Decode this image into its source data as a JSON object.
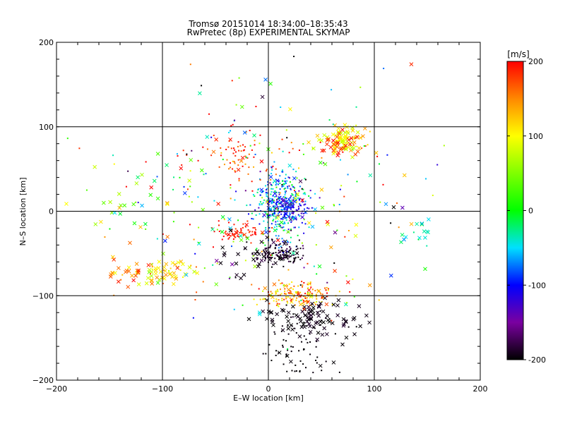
{
  "title_line1": "Tromsø 20151014  18:34:00–18:35:43",
  "title_line2": "RwPretec (8p) EXPERIMENTAL SKYMAP",
  "chart_data": {
    "type": "scatter",
    "title": "Tromsø 20151014  18:34:00–18:35:43 — RwPretec (8p) EXPERIMENTAL SKYMAP",
    "xlabel": "E–W location [km]",
    "ylabel": "N–S location [km]",
    "xlim": [
      -200,
      200
    ],
    "ylim": [
      -200,
      200
    ],
    "xticks": [
      -200,
      -100,
      0,
      100,
      200
    ],
    "yticks": [
      -200,
      -100,
      0,
      100,
      200
    ],
    "grid": true,
    "colorbar": {
      "label": "[m/s]",
      "range": [
        -200,
        200
      ],
      "ticks": [
        200,
        100,
        0,
        -100,
        -200
      ],
      "stops": [
        {
          "v": -200,
          "color": "#000000"
        },
        {
          "v": -150,
          "color": "#7a00a0"
        },
        {
          "v": -100,
          "color": "#0000ff"
        },
        {
          "v": -50,
          "color": "#00e0ff"
        },
        {
          "v": 0,
          "color": "#00ff00"
        },
        {
          "v": 100,
          "color": "#ffff00"
        },
        {
          "v": 150,
          "color": "#ff8800"
        },
        {
          "v": 200,
          "color": "#ff0000"
        }
      ]
    },
    "clusters": [
      {
        "name": "central-core",
        "cx": 10,
        "cy": 5,
        "sx": 12,
        "sy": 22,
        "n": 320,
        "v_mean": -60,
        "v_sd": 45,
        "marker": "dot"
      },
      {
        "name": "central-blue",
        "cx": 18,
        "cy": 5,
        "sx": 10,
        "sy": 10,
        "n": 120,
        "v_mean": -110,
        "v_sd": 20,
        "marker": "dot"
      },
      {
        "name": "black-blob",
        "cx": 10,
        "cy": -50,
        "sx": 12,
        "sy": 6,
        "n": 140,
        "v_mean": -190,
        "v_sd": 10,
        "marker": "dot"
      },
      {
        "name": "southern-orange",
        "cx": 28,
        "cy": -98,
        "sx": 17,
        "sy": 8,
        "n": 170,
        "v_mean": 140,
        "v_sd": 40,
        "marker": "dot"
      },
      {
        "name": "southern-black",
        "cx": 38,
        "cy": -128,
        "sx": 22,
        "sy": 10,
        "n": 110,
        "v_mean": -195,
        "v_sd": 5,
        "marker": "cross"
      },
      {
        "name": "southern-tail",
        "cx": 25,
        "cy": -165,
        "sx": 18,
        "sy": 18,
        "n": 70,
        "v_mean": -198,
        "v_sd": 2,
        "marker": "dot"
      },
      {
        "name": "northeast-yellow",
        "cx": 70,
        "cy": 85,
        "sx": 10,
        "sy": 8,
        "n": 80,
        "v_mean": 100,
        "v_sd": 25,
        "marker": "cross"
      },
      {
        "name": "northeast-red",
        "cx": 70,
        "cy": 78,
        "sx": 10,
        "sy": 8,
        "n": 30,
        "v_mean": 185,
        "v_sd": 15,
        "marker": "cross"
      },
      {
        "name": "mid-red-left",
        "cx": -28,
        "cy": -25,
        "sx": 12,
        "sy": 6,
        "n": 70,
        "v_mean": 190,
        "v_sd": 15,
        "marker": "dot"
      },
      {
        "name": "west-yellow",
        "cx": -100,
        "cy": -70,
        "sx": 18,
        "sy": 8,
        "n": 60,
        "v_mean": 100,
        "v_sd": 30,
        "marker": "cross"
      },
      {
        "name": "west-red",
        "cx": -130,
        "cy": -75,
        "sx": 20,
        "sy": 10,
        "n": 25,
        "v_mean": 170,
        "v_sd": 20,
        "marker": "cross"
      },
      {
        "name": "north-red",
        "cx": -25,
        "cy": 65,
        "sx": 25,
        "sy": 15,
        "n": 80,
        "v_mean": 180,
        "v_sd": 25,
        "marker": "dot"
      },
      {
        "name": "scatter-field",
        "cx": 5,
        "cy": 10,
        "sx": 70,
        "sy": 75,
        "n": 260,
        "v_mean": 20,
        "v_sd": 120,
        "marker": "mixed"
      },
      {
        "name": "west-green",
        "cx": -130,
        "cy": 5,
        "sx": 25,
        "sy": 20,
        "n": 35,
        "v_mean": 50,
        "v_sd": 60,
        "marker": "cross"
      },
      {
        "name": "east-cyan",
        "cx": 140,
        "cy": -25,
        "sx": 8,
        "sy": 10,
        "n": 15,
        "v_mean": -40,
        "v_sd": 20,
        "marker": "cross"
      },
      {
        "name": "mid-black-crosses",
        "cx": -15,
        "cy": -50,
        "sx": 20,
        "sy": 12,
        "n": 25,
        "v_mean": -195,
        "v_sd": 5,
        "marker": "cross"
      }
    ]
  }
}
